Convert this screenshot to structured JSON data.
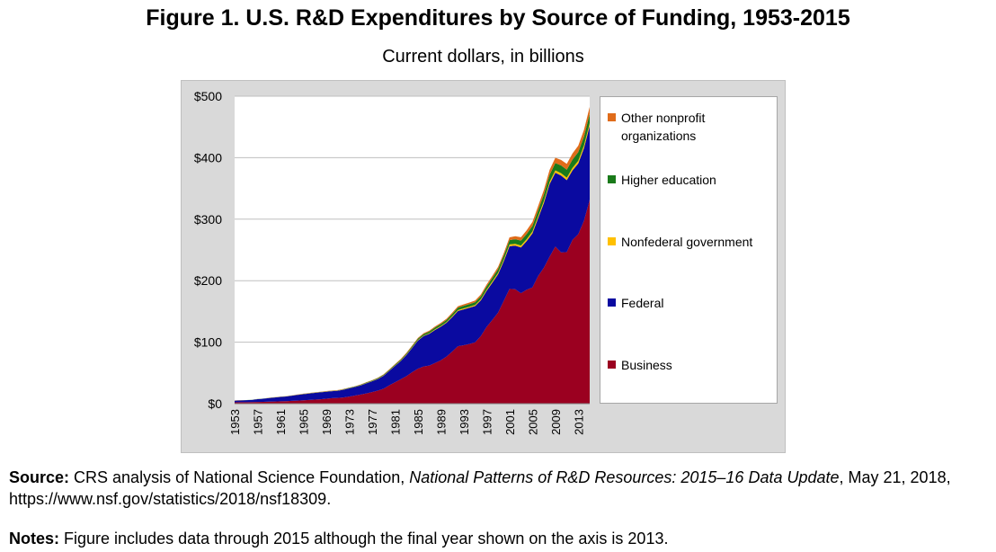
{
  "figure": {
    "title": "Figure 1. U.S. R&D Expenditures by Source of Funding, 1953-2015",
    "subtitle": "Current dollars, in billions"
  },
  "colors": {
    "business": "#9b0020",
    "federal": "#0a0aa0",
    "nonfederal_government": "#ffc000",
    "higher_education": "#1a7a1a",
    "other_nonprofit": "#e06c1a",
    "plot_background": "#ffffff",
    "chart_background": "#d9d9d9",
    "gridline": "#bfbfbf"
  },
  "chart_data": {
    "type": "area",
    "stacked": true,
    "title": "Figure 1. U.S. R&D Expenditures by Source of Funding, 1953-2015",
    "subtitle": "Current dollars, in billions",
    "xlabel": "",
    "ylabel": "",
    "ylim": [
      0,
      500
    ],
    "yticks": [
      0,
      100,
      200,
      300,
      400,
      500
    ],
    "ytick_labels": [
      "$0",
      "$100",
      "$200",
      "$300",
      "$400",
      "$500"
    ],
    "xtick_labels": [
      "1953",
      "1957",
      "1961",
      "1965",
      "1969",
      "1973",
      "1977",
      "1981",
      "1985",
      "1989",
      "1993",
      "1997",
      "2001",
      "2005",
      "2009",
      "2013"
    ],
    "grid": true,
    "legend_position": "right",
    "x": [
      1953,
      1954,
      1955,
      1956,
      1957,
      1958,
      1959,
      1960,
      1961,
      1962,
      1963,
      1964,
      1965,
      1966,
      1967,
      1968,
      1969,
      1970,
      1971,
      1972,
      1973,
      1974,
      1975,
      1976,
      1977,
      1978,
      1979,
      1980,
      1981,
      1982,
      1983,
      1984,
      1985,
      1986,
      1987,
      1988,
      1989,
      1990,
      1991,
      1992,
      1993,
      1994,
      1995,
      1996,
      1997,
      1998,
      1999,
      2000,
      2001,
      2002,
      2003,
      2004,
      2005,
      2006,
      2007,
      2008,
      2009,
      2010,
      2011,
      2012,
      2013,
      2014,
      2015
    ],
    "series": [
      {
        "name": "Business",
        "key": "business",
        "values": [
          2.2,
          2.3,
          2.4,
          2.5,
          2.7,
          3.0,
          3.3,
          3.5,
          3.8,
          4.1,
          4.5,
          4.9,
          5.5,
          6.0,
          6.6,
          7.2,
          8.1,
          8.9,
          9.3,
          10.1,
          11.5,
          13.2,
          14.8,
          16.7,
          18.8,
          21.2,
          24.3,
          29.8,
          34.8,
          39.6,
          44.8,
          51.2,
          56.8,
          60.5,
          62.0,
          66.2,
          70.6,
          76.5,
          84.8,
          93.4,
          95.0,
          97.0,
          99.7,
          110.0,
          124.9,
          136.2,
          148.1,
          167.2,
          186.6,
          186.1,
          179.6,
          185.3,
          188.9,
          207.6,
          221.2,
          239.0,
          255.5,
          246.0,
          246.5,
          266.4,
          275.6,
          297.3,
          331.5
        ]
      },
      {
        "name": "Federal",
        "key": "federal",
        "values": [
          2.8,
          3.0,
          3.2,
          3.5,
          4.7,
          5.0,
          5.9,
          6.6,
          7.2,
          7.6,
          8.5,
          9.4,
          9.9,
          10.5,
          11.0,
          11.3,
          11.3,
          11.4,
          11.7,
          12.6,
          13.3,
          13.8,
          14.8,
          16.4,
          17.5,
          18.9,
          21.1,
          23.3,
          26.6,
          29.7,
          34.3,
          39.5,
          45.8,
          49.3,
          51.7,
          53.7,
          54.6,
          55.0,
          56.0,
          57.4,
          58.4,
          59.0,
          59.1,
          58.1,
          58.5,
          60.5,
          62.3,
          64.6,
          69.5,
          70.8,
          74.5,
          79.2,
          88.0,
          94.0,
          105.0,
          118.0,
          120.0,
          125.0,
          117.0,
          113.0,
          115.0,
          118.0,
          120.0
        ]
      },
      {
        "name": "Nonfederal government",
        "key": "nonfederal_government",
        "values": [
          0.1,
          0.1,
          0.1,
          0.1,
          0.1,
          0.1,
          0.1,
          0.1,
          0.1,
          0.1,
          0.1,
          0.1,
          0.2,
          0.2,
          0.2,
          0.2,
          0.2,
          0.2,
          0.3,
          0.3,
          0.3,
          0.3,
          0.4,
          0.4,
          0.4,
          0.5,
          0.5,
          0.5,
          0.6,
          0.6,
          0.7,
          0.7,
          0.8,
          0.8,
          0.9,
          1.0,
          1.1,
          1.2,
          1.3,
          1.4,
          1.5,
          1.6,
          1.7,
          1.8,
          2.0,
          2.1,
          2.3,
          2.5,
          2.8,
          2.9,
          3.0,
          3.0,
          3.1,
          3.3,
          3.4,
          3.6,
          3.8,
          3.9,
          4.0,
          4.1,
          4.3,
          4.4,
          4.6
        ]
      },
      {
        "name": "Higher education",
        "key": "higher_education",
        "values": [
          0.1,
          0.1,
          0.1,
          0.1,
          0.1,
          0.1,
          0.2,
          0.2,
          0.2,
          0.2,
          0.2,
          0.2,
          0.3,
          0.3,
          0.3,
          0.3,
          0.4,
          0.4,
          0.5,
          0.5,
          0.6,
          0.6,
          0.7,
          0.8,
          0.9,
          1.0,
          1.1,
          1.3,
          1.5,
          1.6,
          1.8,
          2.0,
          2.2,
          2.5,
          2.7,
          3.0,
          3.3,
          3.5,
          3.8,
          4.0,
          4.2,
          4.4,
          4.6,
          4.9,
          5.2,
          5.5,
          6.0,
          6.6,
          7.0,
          7.5,
          8.0,
          8.5,
          9.0,
          9.6,
          10.5,
          11.5,
          12.0,
          12.5,
          13.0,
          13.5,
          14.0,
          14.5,
          15.0
        ]
      },
      {
        "name": "Other nonprofit organizations",
        "key": "other_nonprofit",
        "values": [
          0.1,
          0.1,
          0.1,
          0.1,
          0.1,
          0.1,
          0.2,
          0.2,
          0.2,
          0.2,
          0.2,
          0.3,
          0.3,
          0.3,
          0.3,
          0.3,
          0.4,
          0.4,
          0.4,
          0.4,
          0.5,
          0.5,
          0.5,
          0.6,
          0.6,
          0.7,
          0.7,
          0.8,
          0.9,
          1.0,
          1.1,
          1.2,
          1.3,
          1.4,
          1.5,
          1.6,
          1.8,
          1.9,
          2.1,
          2.2,
          2.4,
          2.5,
          2.7,
          2.9,
          3.1,
          3.4,
          3.7,
          4.0,
          4.5,
          5.0,
          5.5,
          6.0,
          6.5,
          7.0,
          7.5,
          8.0,
          8.5,
          9.0,
          9.5,
          10.0,
          10.5,
          11.0,
          11.5
        ]
      }
    ]
  },
  "legend": {
    "items": [
      {
        "label": "Other nonprofit organizations",
        "key": "other_nonprofit"
      },
      {
        "label": "Higher education",
        "key": "higher_education"
      },
      {
        "label": "Nonfederal government",
        "key": "nonfederal_government"
      },
      {
        "label": "Federal",
        "key": "federal"
      },
      {
        "label": "Business",
        "key": "business"
      }
    ]
  },
  "source": {
    "label": "Source:",
    "text_before": " CRS analysis of National Science Foundation, ",
    "publication": "National Patterns of R&D Resources: 2015–16 Data Update",
    "text_after": ", May 21, 2018, https://www.nsf.gov/statistics/2018/nsf18309."
  },
  "notes": {
    "label": "Notes:",
    "text": " Figure includes data through 2015 although the final year shown on the axis is 2013."
  }
}
